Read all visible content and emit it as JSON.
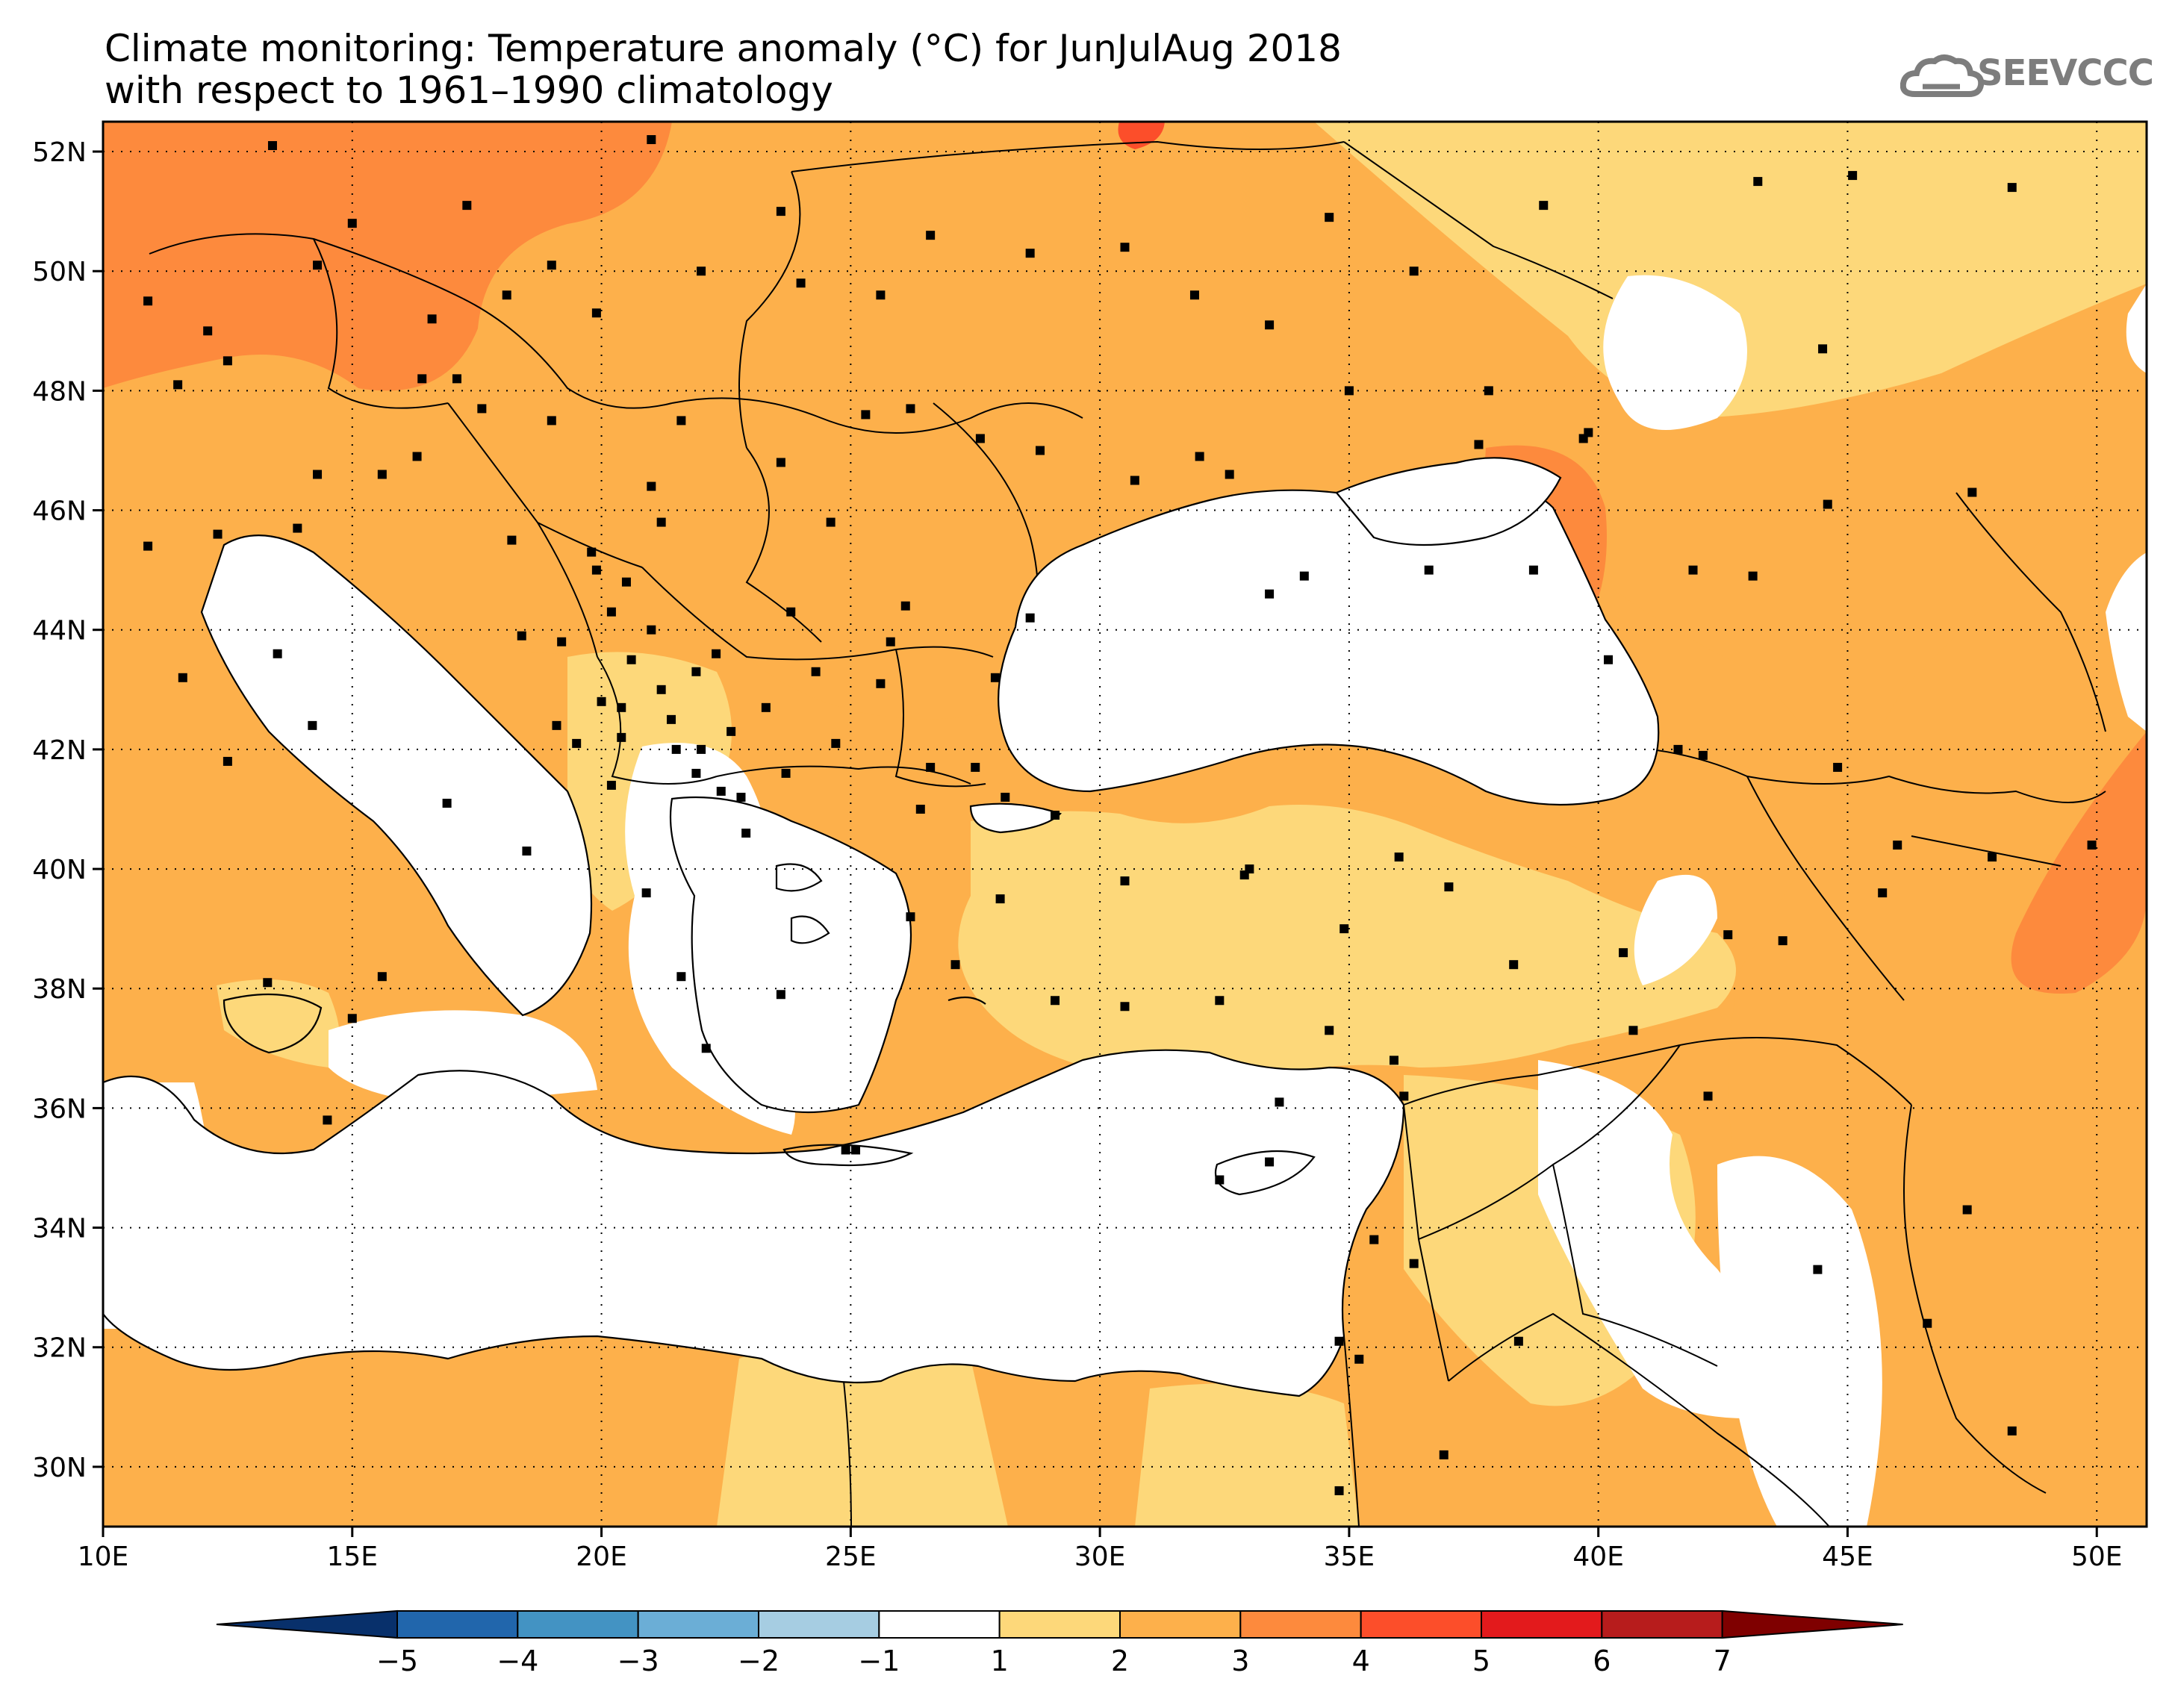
{
  "title_line1": "Climate monitoring: Temperature anomaly (°C) for JunJulAug 2018",
  "title_line2": "with respect to 1961–1990 climatology",
  "logo_text": "SEEVCCC",
  "lat_labels": [
    "52N",
    "50N",
    "48N",
    "46N",
    "44N",
    "42N",
    "40N",
    "38N",
    "36N",
    "34N",
    "32N",
    "30N"
  ],
  "lon_labels": [
    "10E",
    "15E",
    "20E",
    "25E",
    "30E",
    "35E",
    "40E",
    "45E",
    "50E"
  ],
  "colorbar": {
    "labels": [
      "−5",
      "−4",
      "−3",
      "−2",
      "−1",
      "1",
      "2",
      "3",
      "4",
      "5",
      "6",
      "7"
    ],
    "colors": [
      "#08306b",
      "#2166ac",
      "#4393c3",
      "#6baed6",
      "#a6cde2",
      "#ffffff",
      "#fdd87a",
      "#fdb04b",
      "#fd8a3d",
      "#fc4e2a",
      "#e31a1c",
      "#b71c1c",
      "#7f0000"
    ]
  },
  "anomaly_colors": {
    "level_1_2": "#fdd87a",
    "level_2_3": "#fdb04b",
    "level_3_4": "#fd8a3d",
    "level_4_5": "#fc4e2a"
  }
}
